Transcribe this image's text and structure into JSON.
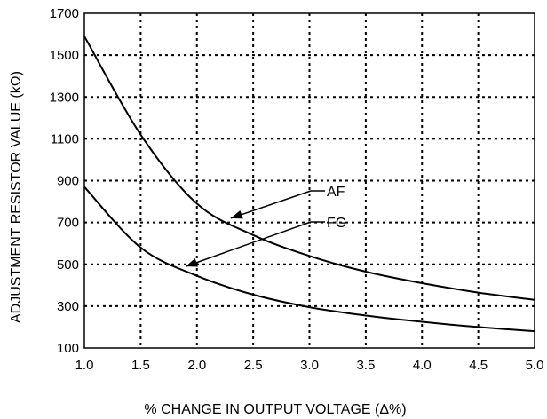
{
  "chart_data": {
    "type": "line",
    "title": "",
    "xlabel": "% CHANGE IN OUTPUT VOLTAGE (Δ%)",
    "ylabel": "ADJUSTMENT RESISTOR VALUE (kΩ)",
    "xlim": [
      1.0,
      5.0
    ],
    "ylim": [
      100,
      1700
    ],
    "x_ticks": [
      "1.0",
      "1.5",
      "2.0",
      "2.5",
      "3.0",
      "3.5",
      "4.0",
      "4.5",
      "5.0"
    ],
    "y_ticks": [
      "100",
      "300",
      "500",
      "700",
      "900",
      "1100",
      "1300",
      "1500",
      "1700"
    ],
    "grid": true,
    "x": [
      1.0,
      1.5,
      2.0,
      2.5,
      3.0,
      3.5,
      4.0,
      4.5,
      5.0
    ],
    "series": [
      {
        "name": "AF",
        "values": [
          1590,
          1120,
          790,
          640,
          540,
          465,
          410,
          365,
          330
        ]
      },
      {
        "name": "FG",
        "values": [
          870,
          580,
          445,
          355,
          295,
          255,
          225,
          200,
          180
        ]
      }
    ],
    "annotations": [
      {
        "text": "AF",
        "series": "AF",
        "point": [
          2.3,
          720
        ]
      },
      {
        "text": "FG",
        "series": "FG",
        "point": [
          1.9,
          490
        ]
      }
    ]
  }
}
